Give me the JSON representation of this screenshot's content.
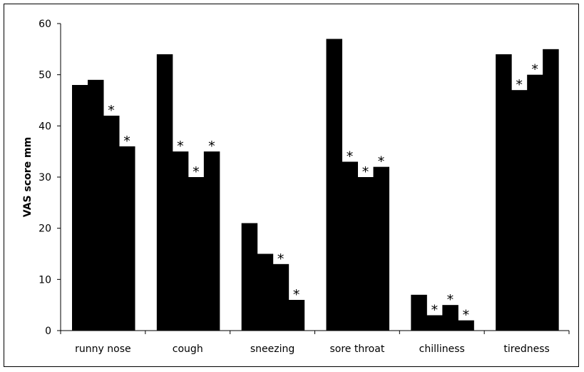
{
  "chart_data": {
    "type": "bar",
    "title": "",
    "xlabel": "",
    "ylabel": "VAS score mm",
    "ylim": [
      0,
      60
    ],
    "yticks": [
      0,
      10,
      20,
      30,
      40,
      50,
      60
    ],
    "grid": false,
    "legend": "none",
    "bar_color": "#000000",
    "significance_marker": "*",
    "categories": [
      "runny nose",
      "cough",
      "sneezing",
      "sore throat",
      "chilliness",
      "tiredness"
    ],
    "groups": [
      {
        "category": "runny nose",
        "values": [
          48,
          49,
          42,
          36
        ],
        "significant": [
          false,
          false,
          true,
          true
        ]
      },
      {
        "category": "cough",
        "values": [
          54,
          35,
          30,
          35
        ],
        "significant": [
          false,
          true,
          true,
          true
        ]
      },
      {
        "category": "sneezing",
        "values": [
          21,
          15,
          13,
          6
        ],
        "significant": [
          false,
          false,
          true,
          true
        ]
      },
      {
        "category": "sore throat",
        "values": [
          57,
          33,
          30,
          32
        ],
        "significant": [
          false,
          true,
          true,
          true
        ]
      },
      {
        "category": "chilliness",
        "values": [
          7,
          3,
          5,
          2
        ],
        "significant": [
          false,
          true,
          true,
          true
        ]
      },
      {
        "category": "tiredness",
        "values": [
          54,
          47,
          50,
          55
        ],
        "significant": [
          false,
          true,
          true,
          false
        ]
      }
    ]
  }
}
